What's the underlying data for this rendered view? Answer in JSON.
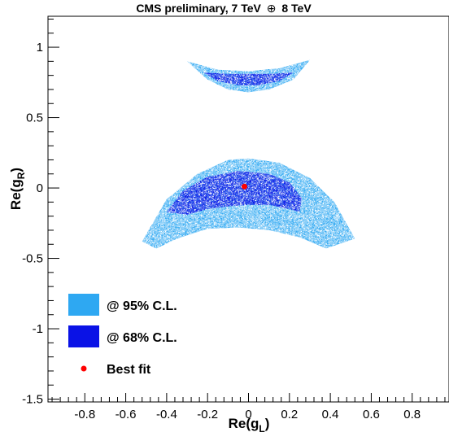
{
  "chart_data": {
    "type": "scatter",
    "title": "CMS preliminary, 7 TeV",
    "title_oplus": "⊕",
    "title_suffix": "8 TeV",
    "xlabel": {
      "base": "Re(g",
      "sub": "L",
      "close": ")"
    },
    "ylabel": {
      "base": "Re(g",
      "sub": "R",
      "close": ")"
    },
    "xlim": [
      -0.98,
      0.98
    ],
    "ylim": [
      -1.52,
      1.22
    ],
    "xticks": [
      -0.8,
      -0.6,
      -0.4,
      -0.2,
      0,
      0.2,
      0.4,
      0.6,
      0.8
    ],
    "xtick_labels": [
      "-0.8",
      "-0.6",
      "-0.4",
      "-0.2",
      "0",
      "0.2",
      "0.4",
      "0.6",
      "0.8"
    ],
    "yticks": [
      -1.5,
      -1,
      -0.5,
      0,
      0.5,
      1
    ],
    "ytick_labels": [
      "-1.5",
      "-1",
      "-0.5",
      "0",
      "0.5",
      "1"
    ],
    "grid": false,
    "legend_position": "bottom-left",
    "colors": {
      "cl95": "#2ea8f2",
      "cl68": "#0a12e6",
      "best_fit": "#ff0000"
    },
    "series": [
      {
        "name": "@ 95% C.L.",
        "kind": "region",
        "regions": [
          {
            "upper": [
              [
                -0.52,
                -0.38
              ],
              [
                -0.4,
                -0.08
              ],
              [
                -0.25,
                0.1
              ],
              [
                -0.1,
                0.2
              ],
              [
                0.0,
                0.21
              ],
              [
                0.15,
                0.18
              ],
              [
                0.3,
                0.07
              ],
              [
                0.42,
                -0.1
              ],
              [
                0.52,
                -0.36
              ]
            ],
            "lower": [
              [
                -0.52,
                -0.38
              ],
              [
                -0.45,
                -0.43
              ],
              [
                -0.35,
                -0.36
              ],
              [
                -0.2,
                -0.29
              ],
              [
                -0.05,
                -0.28
              ],
              [
                0.1,
                -0.3
              ],
              [
                0.25,
                -0.35
              ],
              [
                0.38,
                -0.43
              ],
              [
                0.52,
                -0.36
              ]
            ]
          },
          {
            "upper": [
              [
                -0.3,
                0.9
              ],
              [
                -0.15,
                0.84
              ],
              [
                0.0,
                0.83
              ],
              [
                0.15,
                0.85
              ],
              [
                0.3,
                0.91
              ]
            ],
            "lower": [
              [
                -0.3,
                0.9
              ],
              [
                -0.2,
                0.77
              ],
              [
                -0.1,
                0.7
              ],
              [
                0.0,
                0.68
              ],
              [
                0.1,
                0.7
              ],
              [
                0.22,
                0.77
              ],
              [
                0.3,
                0.91
              ]
            ]
          }
        ]
      },
      {
        "name": "@ 68% C.L.",
        "kind": "region",
        "regions": [
          {
            "upper": [
              [
                -0.4,
                -0.17
              ],
              [
                -0.32,
                -0.02
              ],
              [
                -0.2,
                0.08
              ],
              [
                -0.05,
                0.12
              ],
              [
                0.1,
                0.1
              ],
              [
                0.2,
                0.04
              ],
              [
                0.26,
                -0.07
              ],
              [
                0.25,
                -0.17
              ]
            ],
            "lower": [
              [
                -0.4,
                -0.17
              ],
              [
                -0.3,
                -0.19
              ],
              [
                -0.2,
                -0.15
              ],
              [
                -0.1,
                -0.13
              ],
              [
                0.0,
                -0.12
              ],
              [
                0.1,
                -0.12
              ],
              [
                0.2,
                -0.15
              ],
              [
                0.25,
                -0.17
              ]
            ]
          },
          {
            "upper": [
              [
                -0.22,
                0.82
              ],
              [
                -0.1,
                0.81
              ],
              [
                0.0,
                0.81
              ],
              [
                0.1,
                0.81
              ],
              [
                0.22,
                0.82
              ]
            ],
            "lower": [
              [
                -0.22,
                0.82
              ],
              [
                -0.15,
                0.76
              ],
              [
                -0.05,
                0.73
              ],
              [
                0.05,
                0.73
              ],
              [
                0.15,
                0.76
              ],
              [
                0.22,
                0.82
              ]
            ]
          }
        ]
      },
      {
        "name": "Best fit",
        "kind": "point",
        "points": [
          [
            -0.02,
            0.01
          ]
        ]
      }
    ]
  }
}
